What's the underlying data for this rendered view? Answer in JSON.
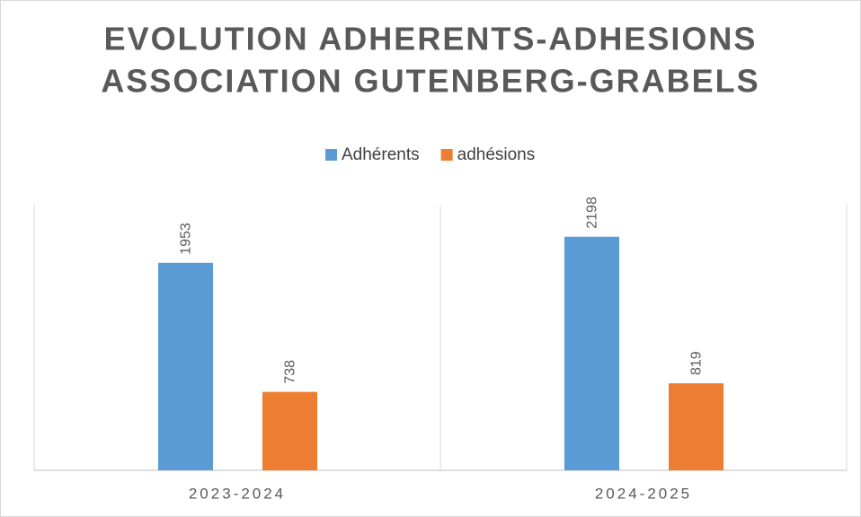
{
  "chart_data": {
    "type": "bar",
    "title": [
      "EVOLUTION ADHERENTS-ADHESIONS",
      "ASSOCIATION GUTENBERG-GRABELS"
    ],
    "categories": [
      "2023-2024",
      "2024-2025"
    ],
    "series": [
      {
        "name": "Adhérents",
        "color": "#5b9bd5",
        "values": [
          1953,
          2198
        ]
      },
      {
        "name": "adhésions",
        "color": "#ed7d31",
        "values": [
          738,
          819
        ]
      }
    ],
    "ylim": [
      0,
      2500
    ],
    "legend": "top"
  }
}
